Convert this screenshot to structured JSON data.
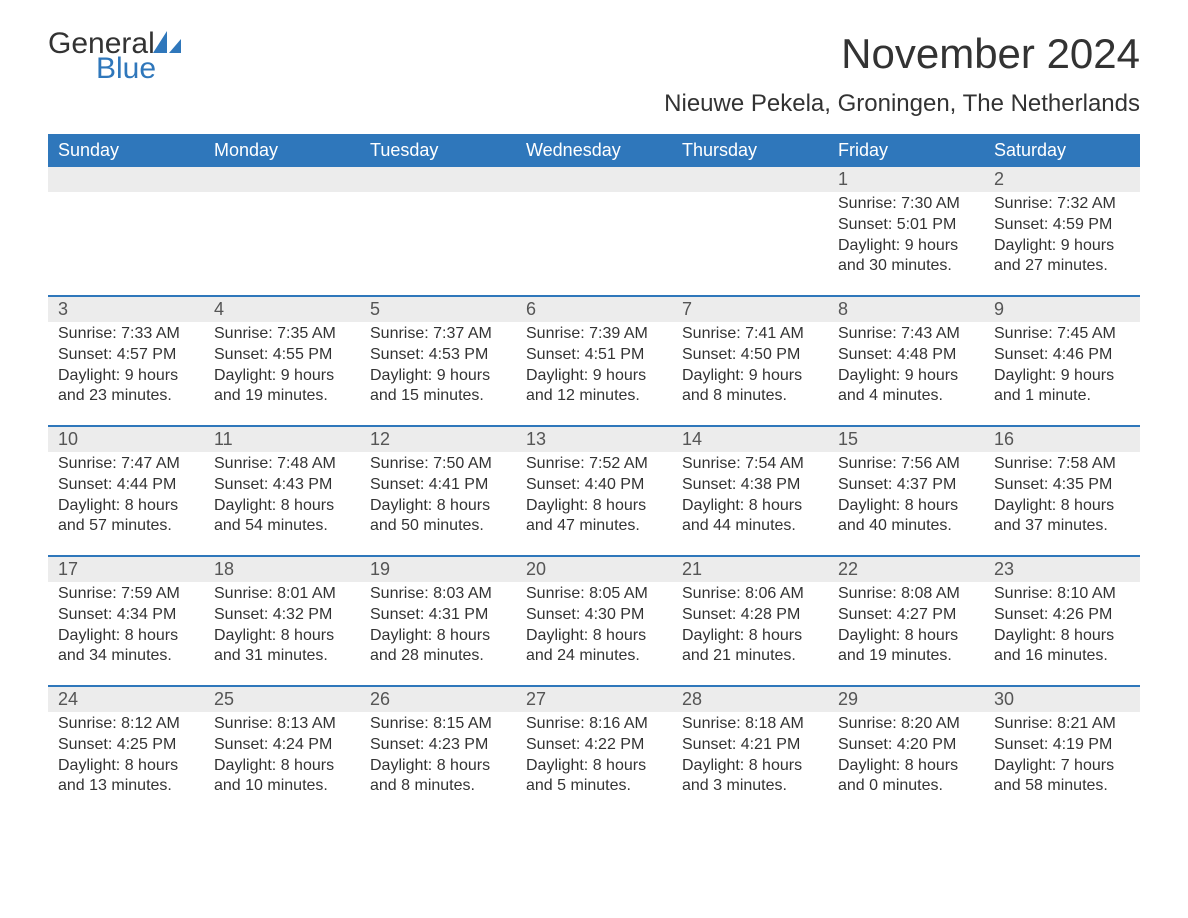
{
  "brand": {
    "line1": "General",
    "line2": "Blue",
    "accent_color": "#2f77bb"
  },
  "title": "November 2024",
  "location": "Nieuwe Pekela, Groningen, The Netherlands",
  "calendar": {
    "type": "table",
    "header_bg": "#2f77bb",
    "header_fg": "#ffffff",
    "daynum_bg": "#ececec",
    "sep_color": "#2f77bb",
    "background_color": "#ffffff",
    "text_color": "#333333",
    "title_fontsize": 42,
    "location_fontsize": 24,
    "header_fontsize": 18,
    "daynum_fontsize": 18,
    "body_fontsize": 16,
    "columns": [
      "Sunday",
      "Monday",
      "Tuesday",
      "Wednesday",
      "Thursday",
      "Friday",
      "Saturday"
    ],
    "weeks": [
      [
        null,
        null,
        null,
        null,
        null,
        {
          "day": "1",
          "sunrise": "Sunrise: 7:30 AM",
          "sunset": "Sunset: 5:01 PM",
          "daylight": "Daylight: 9 hours and 30 minutes."
        },
        {
          "day": "2",
          "sunrise": "Sunrise: 7:32 AM",
          "sunset": "Sunset: 4:59 PM",
          "daylight": "Daylight: 9 hours and 27 minutes."
        }
      ],
      [
        {
          "day": "3",
          "sunrise": "Sunrise: 7:33 AM",
          "sunset": "Sunset: 4:57 PM",
          "daylight": "Daylight: 9 hours and 23 minutes."
        },
        {
          "day": "4",
          "sunrise": "Sunrise: 7:35 AM",
          "sunset": "Sunset: 4:55 PM",
          "daylight": "Daylight: 9 hours and 19 minutes."
        },
        {
          "day": "5",
          "sunrise": "Sunrise: 7:37 AM",
          "sunset": "Sunset: 4:53 PM",
          "daylight": "Daylight: 9 hours and 15 minutes."
        },
        {
          "day": "6",
          "sunrise": "Sunrise: 7:39 AM",
          "sunset": "Sunset: 4:51 PM",
          "daylight": "Daylight: 9 hours and 12 minutes."
        },
        {
          "day": "7",
          "sunrise": "Sunrise: 7:41 AM",
          "sunset": "Sunset: 4:50 PM",
          "daylight": "Daylight: 9 hours and 8 minutes."
        },
        {
          "day": "8",
          "sunrise": "Sunrise: 7:43 AM",
          "sunset": "Sunset: 4:48 PM",
          "daylight": "Daylight: 9 hours and 4 minutes."
        },
        {
          "day": "9",
          "sunrise": "Sunrise: 7:45 AM",
          "sunset": "Sunset: 4:46 PM",
          "daylight": "Daylight: 9 hours and 1 minute."
        }
      ],
      [
        {
          "day": "10",
          "sunrise": "Sunrise: 7:47 AM",
          "sunset": "Sunset: 4:44 PM",
          "daylight": "Daylight: 8 hours and 57 minutes."
        },
        {
          "day": "11",
          "sunrise": "Sunrise: 7:48 AM",
          "sunset": "Sunset: 4:43 PM",
          "daylight": "Daylight: 8 hours and 54 minutes."
        },
        {
          "day": "12",
          "sunrise": "Sunrise: 7:50 AM",
          "sunset": "Sunset: 4:41 PM",
          "daylight": "Daylight: 8 hours and 50 minutes."
        },
        {
          "day": "13",
          "sunrise": "Sunrise: 7:52 AM",
          "sunset": "Sunset: 4:40 PM",
          "daylight": "Daylight: 8 hours and 47 minutes."
        },
        {
          "day": "14",
          "sunrise": "Sunrise: 7:54 AM",
          "sunset": "Sunset: 4:38 PM",
          "daylight": "Daylight: 8 hours and 44 minutes."
        },
        {
          "day": "15",
          "sunrise": "Sunrise: 7:56 AM",
          "sunset": "Sunset: 4:37 PM",
          "daylight": "Daylight: 8 hours and 40 minutes."
        },
        {
          "day": "16",
          "sunrise": "Sunrise: 7:58 AM",
          "sunset": "Sunset: 4:35 PM",
          "daylight": "Daylight: 8 hours and 37 minutes."
        }
      ],
      [
        {
          "day": "17",
          "sunrise": "Sunrise: 7:59 AM",
          "sunset": "Sunset: 4:34 PM",
          "daylight": "Daylight: 8 hours and 34 minutes."
        },
        {
          "day": "18",
          "sunrise": "Sunrise: 8:01 AM",
          "sunset": "Sunset: 4:32 PM",
          "daylight": "Daylight: 8 hours and 31 minutes."
        },
        {
          "day": "19",
          "sunrise": "Sunrise: 8:03 AM",
          "sunset": "Sunset: 4:31 PM",
          "daylight": "Daylight: 8 hours and 28 minutes."
        },
        {
          "day": "20",
          "sunrise": "Sunrise: 8:05 AM",
          "sunset": "Sunset: 4:30 PM",
          "daylight": "Daylight: 8 hours and 24 minutes."
        },
        {
          "day": "21",
          "sunrise": "Sunrise: 8:06 AM",
          "sunset": "Sunset: 4:28 PM",
          "daylight": "Daylight: 8 hours and 21 minutes."
        },
        {
          "day": "22",
          "sunrise": "Sunrise: 8:08 AM",
          "sunset": "Sunset: 4:27 PM",
          "daylight": "Daylight: 8 hours and 19 minutes."
        },
        {
          "day": "23",
          "sunrise": "Sunrise: 8:10 AM",
          "sunset": "Sunset: 4:26 PM",
          "daylight": "Daylight: 8 hours and 16 minutes."
        }
      ],
      [
        {
          "day": "24",
          "sunrise": "Sunrise: 8:12 AM",
          "sunset": "Sunset: 4:25 PM",
          "daylight": "Daylight: 8 hours and 13 minutes."
        },
        {
          "day": "25",
          "sunrise": "Sunrise: 8:13 AM",
          "sunset": "Sunset: 4:24 PM",
          "daylight": "Daylight: 8 hours and 10 minutes."
        },
        {
          "day": "26",
          "sunrise": "Sunrise: 8:15 AM",
          "sunset": "Sunset: 4:23 PM",
          "daylight": "Daylight: 8 hours and 8 minutes."
        },
        {
          "day": "27",
          "sunrise": "Sunrise: 8:16 AM",
          "sunset": "Sunset: 4:22 PM",
          "daylight": "Daylight: 8 hours and 5 minutes."
        },
        {
          "day": "28",
          "sunrise": "Sunrise: 8:18 AM",
          "sunset": "Sunset: 4:21 PM",
          "daylight": "Daylight: 8 hours and 3 minutes."
        },
        {
          "day": "29",
          "sunrise": "Sunrise: 8:20 AM",
          "sunset": "Sunset: 4:20 PM",
          "daylight": "Daylight: 8 hours and 0 minutes."
        },
        {
          "day": "30",
          "sunrise": "Sunrise: 8:21 AM",
          "sunset": "Sunset: 4:19 PM",
          "daylight": "Daylight: 7 hours and 58 minutes."
        }
      ]
    ]
  }
}
